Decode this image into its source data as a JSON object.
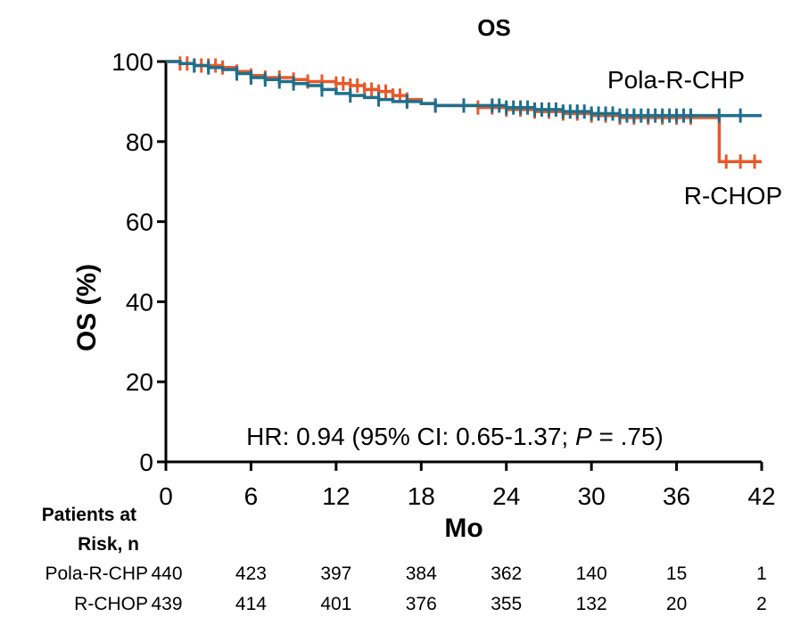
{
  "colors": {
    "pola": "#1f6f8b",
    "rchop": "#e8582a"
  },
  "chart_data": {
    "type": "line",
    "title": "OS",
    "xlabel": "Mo",
    "ylabel": "OS (%)",
    "xlim": [
      0,
      42
    ],
    "ylim": [
      0,
      100
    ],
    "xticks": [
      "0",
      "6",
      "12",
      "18",
      "24",
      "30",
      "36",
      "42"
    ],
    "yticks": [
      "0",
      "20",
      "40",
      "60",
      "80",
      "100"
    ],
    "series": [
      {
        "name": "Pola-R-CHP",
        "color": "#1f6f8b",
        "x": [
          0,
          1,
          2,
          3,
          4,
          5,
          6,
          7,
          8,
          9,
          10,
          11,
          12,
          13,
          14,
          15,
          16,
          17,
          18,
          19,
          20,
          22,
          24,
          26,
          28,
          30,
          32,
          34,
          36,
          38,
          40,
          42
        ],
        "y": [
          100,
          99.5,
          99,
          98.5,
          98,
          97,
          96,
          95.5,
          95,
          94.5,
          94,
          93,
          92,
          91.5,
          91,
          90.5,
          90,
          90,
          89.5,
          89,
          89,
          89,
          88.5,
          88,
          87.5,
          87,
          86.5,
          86.5,
          86.5,
          86.5,
          86.5,
          86.5
        ],
        "censor_x": [
          2,
          3,
          5,
          6,
          7,
          8,
          9,
          11,
          13,
          15,
          17,
          19,
          21,
          23,
          23.5,
          24,
          24.5,
          25,
          25.5,
          26,
          26.5,
          27,
          27.5,
          28,
          28.5,
          29,
          29.5,
          30,
          30.5,
          31,
          31.5,
          32,
          32.5,
          33,
          33.5,
          34,
          34.5,
          35,
          35.5,
          36,
          36.5,
          37,
          39,
          40.5
        ]
      },
      {
        "name": "R-CHOP",
        "color": "#e8582a",
        "x": [
          0,
          1,
          2,
          3,
          4,
          5,
          6,
          7,
          8,
          9,
          10,
          11,
          12,
          13,
          14,
          15,
          16,
          17,
          18,
          19,
          20,
          22,
          24,
          26,
          28,
          30,
          32,
          34,
          36,
          38,
          39,
          39.01,
          42
        ],
        "y": [
          100,
          99.5,
          99,
          99,
          98.5,
          97.5,
          96.5,
          96,
          96,
          95.5,
          95,
          95,
          94.5,
          94,
          93,
          92.5,
          91.5,
          90.5,
          89.5,
          89,
          89,
          88.5,
          88,
          87.5,
          87,
          86.5,
          86,
          86,
          86,
          86,
          86,
          75,
          75
        ],
        "censor_x": [
          1,
          1.5,
          2,
          2.5,
          3,
          3.5,
          4,
          5,
          6,
          7,
          8,
          9,
          10,
          11,
          12,
          12.5,
          13,
          13.5,
          14,
          14.5,
          15,
          15.5,
          16,
          16.5,
          17,
          19,
          21,
          22,
          23,
          24,
          25,
          26,
          27,
          28,
          29,
          30,
          31,
          32,
          33,
          34,
          35,
          36,
          37,
          39.5,
          40.5,
          41.5
        ]
      }
    ],
    "series_labels": [
      "Pola-R-CHP",
      "R-CHOP"
    ],
    "annotation": {
      "prefix": "HR: 0.94 (95% CI: 0.65-1.37; ",
      "italic": "P",
      "suffix": " = .75)"
    },
    "risk_table": {
      "header_line1": "Patients at",
      "header_line2": "Risk, n",
      "rows": [
        {
          "label": "Pola-R-CHP",
          "values": [
            "440",
            "423",
            "397",
            "384",
            "362",
            "140",
            "15",
            "1"
          ]
        },
        {
          "label": "R-CHOP",
          "values": [
            "439",
            "414",
            "401",
            "376",
            "355",
            "132",
            "20",
            "2"
          ]
        }
      ]
    }
  }
}
